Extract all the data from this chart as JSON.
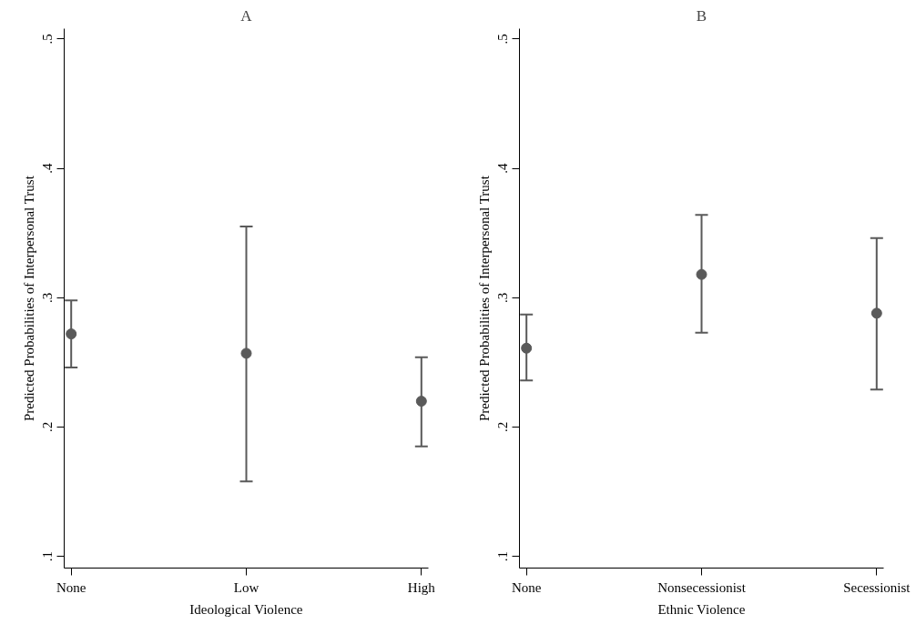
{
  "chart_data": [
    {
      "type": "scatter",
      "title": "A",
      "xlabel": "Ideological Violence",
      "ylabel": "Predicted Probabilities of Interpersonal Trust",
      "categories": [
        "None",
        "Low",
        "High"
      ],
      "series": [
        {
          "color": "#5a5a5a",
          "values": [
            0.272,
            0.257,
            0.22
          ],
          "errors": [
            [
              0.246,
              0.298
            ],
            [
              0.158,
              0.355
            ],
            [
              0.185,
              0.254
            ]
          ]
        }
      ],
      "ylim": [
        0.091,
        0.508
      ],
      "yticks": [
        {
          "value": 0.1,
          "label": ".1"
        },
        {
          "value": 0.2,
          "label": ".2"
        },
        {
          "value": 0.3,
          "label": ".3"
        },
        {
          "value": 0.4,
          "label": ".4"
        },
        {
          "value": 0.5,
          "label": ".5"
        }
      ],
      "grid": false,
      "marker": "circle"
    },
    {
      "type": "scatter",
      "title": "B",
      "xlabel": "Ethnic Violence",
      "ylabel": "Predicted Probabilities of Interpersonal Trust",
      "categories": [
        "None",
        "Nonsecessionist",
        "Secessionist"
      ],
      "series": [
        {
          "color": "#5a5a5a",
          "values": [
            0.261,
            0.318,
            0.288
          ],
          "errors": [
            [
              0.236,
              0.287
            ],
            [
              0.273,
              0.364
            ],
            [
              0.229,
              0.346
            ]
          ]
        }
      ],
      "ylim": [
        0.091,
        0.508
      ],
      "yticks": [
        {
          "value": 0.1,
          "label": ".1"
        },
        {
          "value": 0.2,
          "label": ".2"
        },
        {
          "value": 0.3,
          "label": ".3"
        },
        {
          "value": 0.4,
          "label": ".4"
        },
        {
          "value": 0.5,
          "label": ".5"
        }
      ],
      "grid": false,
      "marker": "circle"
    }
  ]
}
